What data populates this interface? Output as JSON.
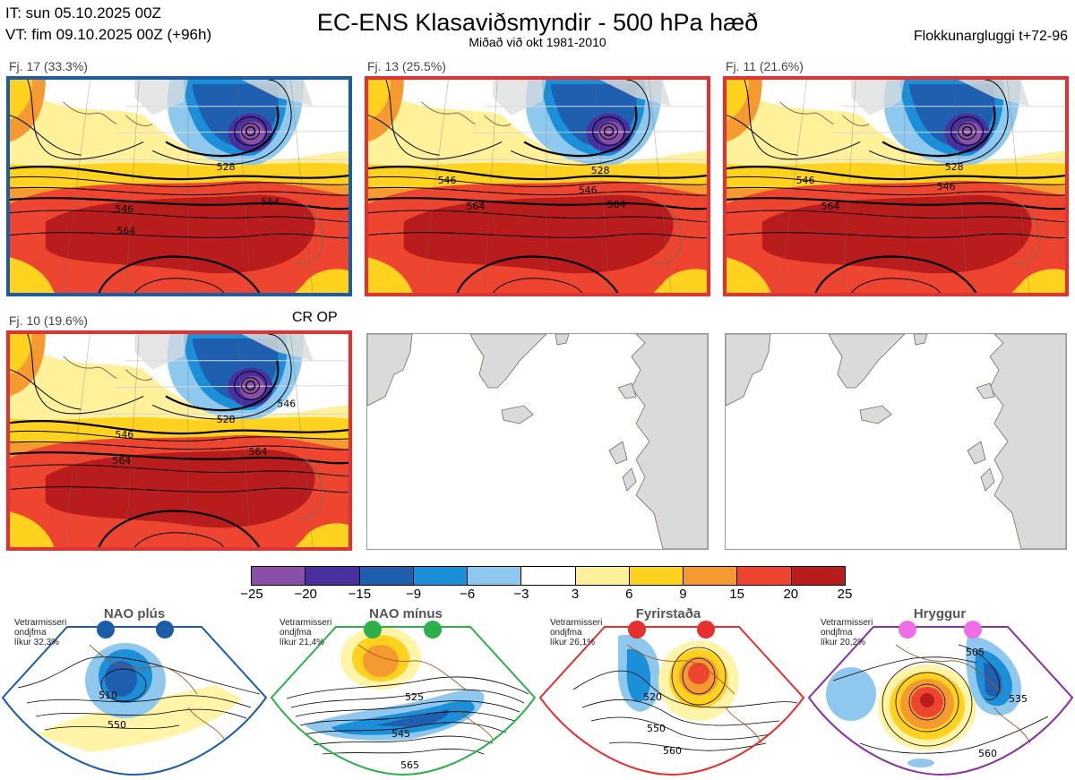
{
  "header": {
    "it": "IT: sun 05.10.2025 00Z",
    "vt": "VT: fim 09.10.2025 00Z  (+96h)",
    "title": "EC-ENS Klasaviðsmyndir - 500 hPa hæð",
    "subtitle": "Miðað við okt 1981-2010",
    "window": "Flokkunargluggi t+72-96"
  },
  "clusters": [
    {
      "label": "Fj. 17 (33.3%)",
      "frame_color": "#1a5ca8",
      "contours": [
        "546",
        "564",
        "528",
        "564"
      ]
    },
    {
      "label": "Fj. 13 (25.5%)",
      "frame_color": "#e53030",
      "contours": [
        "546",
        "546",
        "564",
        "528",
        "564"
      ]
    },
    {
      "label": "Fj. 11 (21.6%)",
      "frame_color": "#e53030",
      "contours": [
        "546",
        "546",
        "564",
        "528"
      ]
    },
    {
      "label": "Fj. 10 (19.6%)",
      "frame_color": "#e53030",
      "contours": [
        "546",
        "564",
        "528",
        "564",
        "546"
      ],
      "tag": "CR OP"
    }
  ],
  "colorbar": {
    "ticks": [
      "−25",
      "−20",
      "−15",
      "−9",
      "−6",
      "−3",
      "3",
      "6",
      "9",
      "15",
      "20",
      "25"
    ],
    "colors": [
      "#8a4fa8",
      "#4a2fa0",
      "#1f5faf",
      "#1b8fd8",
      "#8ec8ee",
      "#ffffff",
      "#fff09a",
      "#ffd21f",
      "#f59a30",
      "#ee4530",
      "#b81c1c"
    ]
  },
  "regimes": [
    {
      "name": "NAO plús",
      "color": "#1a5ca8",
      "note": [
        "Vetrarmisseri",
        "ondjfma",
        "líkur 32,3%"
      ],
      "contours": [
        "510",
        "550"
      ]
    },
    {
      "name": "NAO mínus",
      "color": "#2bb04a",
      "note": [
        "Vetrarmisseri",
        "ondjfma",
        "líkur 21,4%"
      ],
      "contours": [
        "525",
        "545",
        "565"
      ]
    },
    {
      "name": "Fyrirstaða",
      "color": "#e53030",
      "note": [
        "Vetrarmisseri",
        "ondjfma",
        "líkur 26,1%"
      ],
      "contours": [
        "520",
        "550",
        "560"
      ]
    },
    {
      "name": "Hryggur",
      "color": "#8a2fa0",
      "note": [
        "Vetrarmisseri",
        "ondjfma",
        "líkur 20,2%"
      ],
      "contours": [
        "505",
        "535",
        "560"
      ]
    }
  ]
}
